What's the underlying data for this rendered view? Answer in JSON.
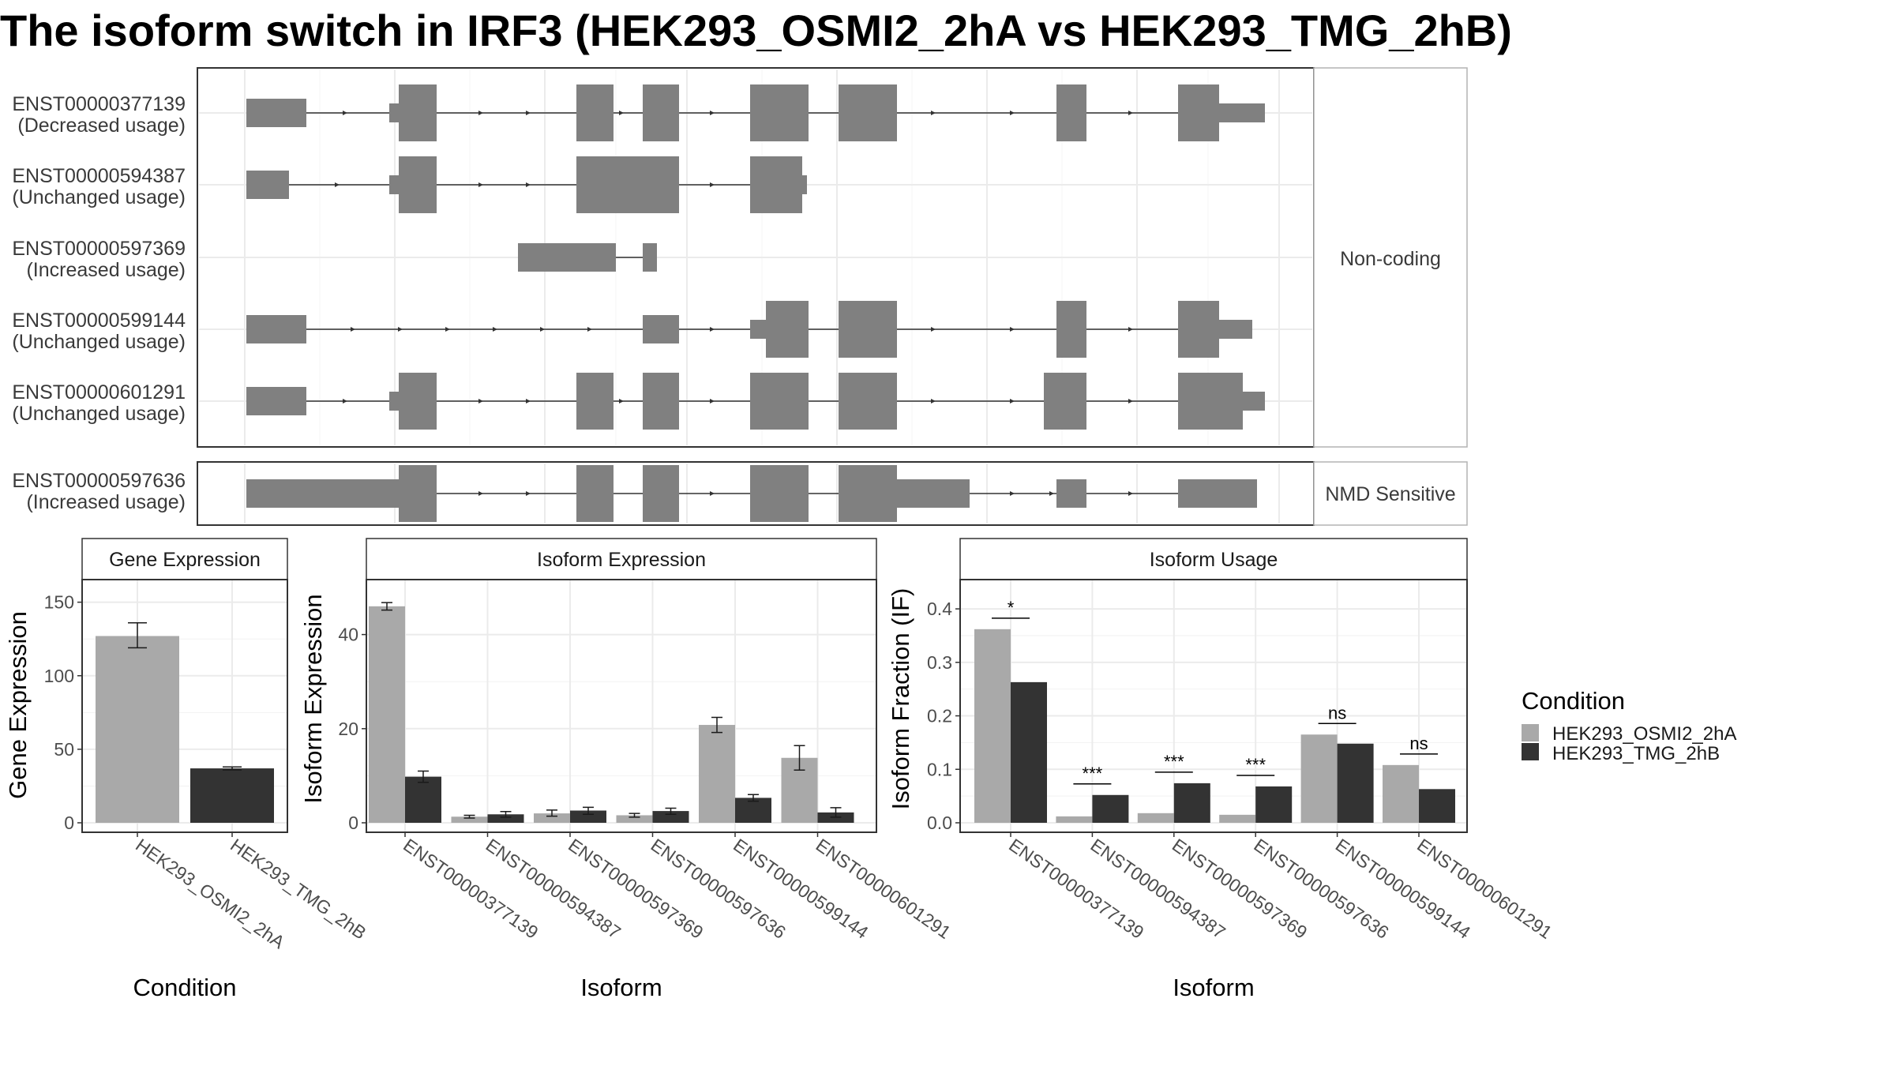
{
  "title": "The isoform switch in IRF3 (HEK293_OSMI2_2hA vs HEK293_TMG_2hB)",
  "colors": {
    "cond1": "#a9a9a9",
    "cond2": "#333333",
    "exon": "#808080"
  },
  "structure": {
    "groups": [
      {
        "label": "Non-coding",
        "transcripts": [
          {
            "id": "ENST00000377139",
            "usage": "(Decreased usage)"
          },
          {
            "id": "ENST00000594387",
            "usage": "(Unchanged usage)"
          },
          {
            "id": "ENST00000597369",
            "usage": "(Increased usage)"
          },
          {
            "id": "ENST00000599144",
            "usage": "(Unchanged usage)"
          },
          {
            "id": "ENST00000601291",
            "usage": "(Unchanged usage)"
          }
        ]
      },
      {
        "label": "NMD Sensitive",
        "transcripts": [
          {
            "id": "ENST00000597636",
            "usage": "(Increased usage)"
          }
        ]
      }
    ]
  },
  "legend": {
    "title": "Condition",
    "items": [
      "HEK293_OSMI2_2hA",
      "HEK293_TMG_2hB"
    ]
  },
  "chart_data": [
    {
      "type": "bar",
      "title": "Gene Expression",
      "xlabel": "Condition",
      "ylabel": "Gene Expression",
      "ylim": [
        0,
        160
      ],
      "categories": [
        "HEK293_OSMI2_2hA",
        "HEK293_TMG_2hB"
      ],
      "values": [
        127,
        37
      ],
      "errors": [
        [
          119,
          136
        ],
        [
          36,
          38
        ]
      ],
      "yticks": [
        0,
        50,
        100,
        150
      ]
    },
    {
      "type": "bar",
      "title": "Isoform Expression",
      "xlabel": "Isoform",
      "ylabel": "Isoform Expression",
      "ylim": [
        0,
        50
      ],
      "categories": [
        "ENST00000377139",
        "ENST00000594387",
        "ENST00000597369",
        "ENST00000597636",
        "ENST00000599144",
        "ENST00000601291"
      ],
      "series": [
        {
          "name": "HEK293_OSMI2_2hA",
          "values": [
            46,
            1.3,
            2.0,
            1.6,
            20.8,
            13.8
          ],
          "errors": [
            [
              45.2,
              46.8
            ],
            [
              1.0,
              1.6
            ],
            [
              1.4,
              2.7
            ],
            [
              1.2,
              2.0
            ],
            [
              19.2,
              22.4
            ],
            [
              11.2,
              16.4
            ]
          ]
        },
        {
          "name": "HEK293_TMG_2hB",
          "values": [
            9.8,
            1.8,
            2.6,
            2.5,
            5.3,
            2.2
          ],
          "errors": [
            [
              8.6,
              11.0
            ],
            [
              1.2,
              2.4
            ],
            [
              1.8,
              3.3
            ],
            [
              1.8,
              3.1
            ],
            [
              4.6,
              6.0
            ],
            [
              1.2,
              3.2
            ]
          ]
        }
      ],
      "yticks": [
        0,
        20,
        40
      ]
    },
    {
      "type": "bar",
      "title": "Isoform Usage",
      "xlabel": "Isoform",
      "ylabel": "Isoform Fraction (IF)",
      "ylim": [
        0,
        0.44
      ],
      "categories": [
        "ENST00000377139",
        "ENST00000594387",
        "ENST00000597369",
        "ENST00000597636",
        "ENST00000599144",
        "ENST00000601291"
      ],
      "series": [
        {
          "name": "HEK293_OSMI2_2hA",
          "values": [
            0.362,
            0.012,
            0.018,
            0.015,
            0.165,
            0.108
          ]
        },
        {
          "name": "HEK293_TMG_2hB",
          "values": [
            0.263,
            0.052,
            0.074,
            0.068,
            0.148,
            0.063
          ]
        }
      ],
      "significance": [
        "*",
        "***",
        "***",
        "***",
        "ns",
        "ns"
      ],
      "yticks": [
        "0.0",
        "0.1",
        "0.2",
        "0.3",
        "0.4"
      ]
    }
  ]
}
